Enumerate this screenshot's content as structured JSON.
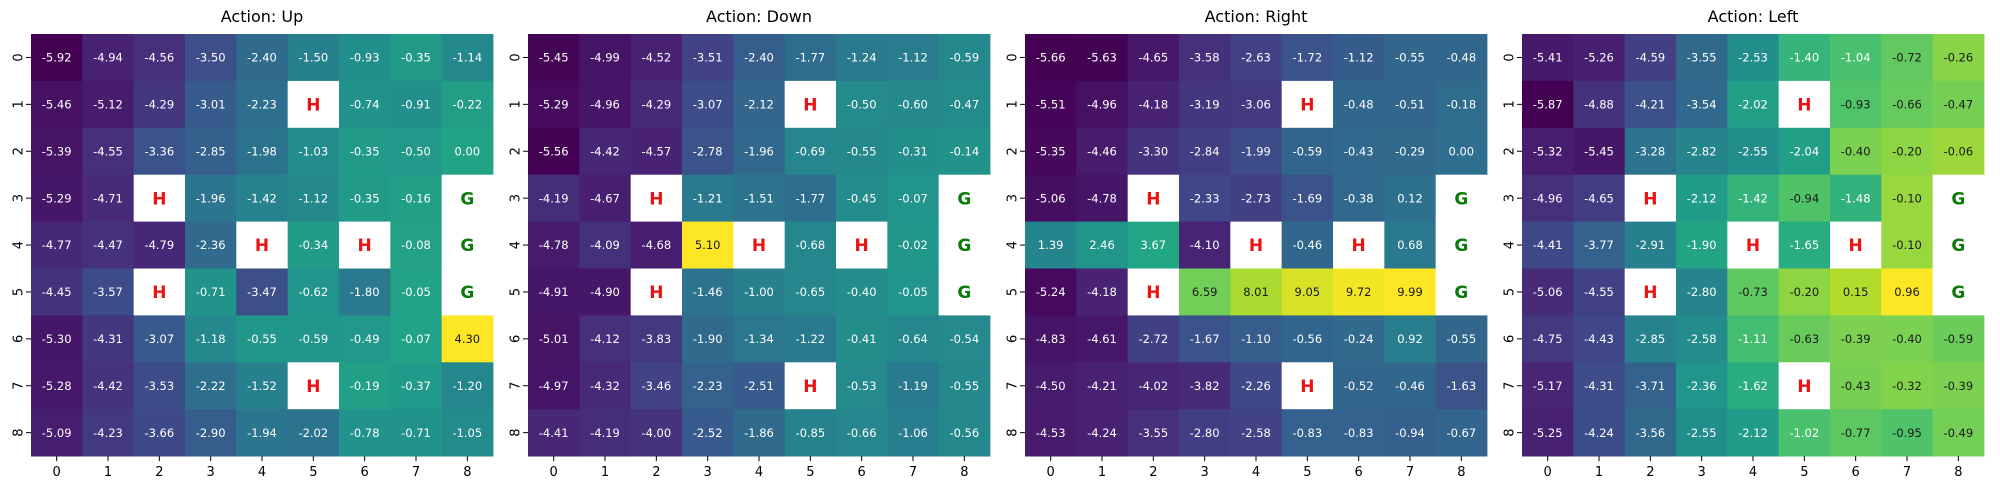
{
  "chart_data": [
    {
      "type": "heatmap",
      "title": "Action: Up",
      "x_ticks": [
        "0",
        "1",
        "2",
        "3",
        "4",
        "5",
        "6",
        "7",
        "8"
      ],
      "y_ticks": [
        "0",
        "1",
        "2",
        "3",
        "4",
        "5",
        "6",
        "7",
        "8"
      ],
      "cells": [
        [
          "-5.92",
          "-4.94",
          "-4.56",
          "-3.50",
          "-2.40",
          "-1.50",
          "-0.93",
          "-0.35",
          "-1.14"
        ],
        [
          "-5.46",
          "-5.12",
          "-4.29",
          "-3.01",
          "-2.23",
          "H",
          "-0.74",
          "-0.91",
          "-0.22"
        ],
        [
          "-5.39",
          "-4.55",
          "-3.36",
          "-2.85",
          "-1.98",
          "-1.03",
          "-0.35",
          "-0.50",
          "0.00"
        ],
        [
          "-5.29",
          "-4.71",
          "H",
          "-1.96",
          "-1.42",
          "-1.12",
          "-0.35",
          "-0.16",
          "G"
        ],
        [
          "-4.77",
          "-4.47",
          "-4.79",
          "-2.36",
          "H",
          "-0.34",
          "H",
          "-0.08",
          "G"
        ],
        [
          "-4.45",
          "-3.57",
          "H",
          "-0.71",
          "-3.47",
          "-0.62",
          "-1.80",
          "-0.05",
          "G"
        ],
        [
          "-5.30",
          "-4.31",
          "-3.07",
          "-1.18",
          "-0.55",
          "-0.59",
          "-0.49",
          "-0.07",
          "4.30"
        ],
        [
          "-5.28",
          "-4.42",
          "-3.53",
          "-2.22",
          "-1.52",
          "H",
          "-0.19",
          "-0.37",
          "-1.20"
        ],
        [
          "-5.09",
          "-4.23",
          "-3.66",
          "-2.90",
          "-1.94",
          "-2.02",
          "-0.78",
          "-0.71",
          "-1.05"
        ]
      ]
    },
    {
      "type": "heatmap",
      "title": "Action: Down",
      "x_ticks": [
        "0",
        "1",
        "2",
        "3",
        "4",
        "5",
        "6",
        "7",
        "8"
      ],
      "y_ticks": [
        "0",
        "1",
        "2",
        "3",
        "4",
        "5",
        "6",
        "7",
        "8"
      ],
      "cells": [
        [
          "-5.45",
          "-4.99",
          "-4.52",
          "-3.51",
          "-2.40",
          "-1.77",
          "-1.24",
          "-1.12",
          "-0.59"
        ],
        [
          "-5.29",
          "-4.96",
          "-4.29",
          "-3.07",
          "-2.12",
          "H",
          "-0.50",
          "-0.60",
          "-0.47"
        ],
        [
          "-5.56",
          "-4.42",
          "-4.57",
          "-2.78",
          "-1.96",
          "-0.69",
          "-0.55",
          "-0.31",
          "-0.14"
        ],
        [
          "-4.19",
          "-4.67",
          "H",
          "-1.21",
          "-1.51",
          "-1.77",
          "-0.45",
          "-0.07",
          "G"
        ],
        [
          "-4.78",
          "-4.09",
          "-4.68",
          "5.10",
          "H",
          "-0.68",
          "H",
          "-0.02",
          "G"
        ],
        [
          "-4.91",
          "-4.90",
          "H",
          "-1.46",
          "-1.00",
          "-0.65",
          "-0.40",
          "-0.05",
          "G"
        ],
        [
          "-5.01",
          "-4.12",
          "-3.83",
          "-1.90",
          "-1.34",
          "-1.22",
          "-0.41",
          "-0.64",
          "-0.54"
        ],
        [
          "-4.97",
          "-4.32",
          "-3.46",
          "-2.23",
          "-2.51",
          "H",
          "-0.53",
          "-1.19",
          "-0.55"
        ],
        [
          "-4.41",
          "-4.19",
          "-4.00",
          "-2.52",
          "-1.86",
          "-0.85",
          "-0.66",
          "-1.06",
          "-0.56"
        ]
      ]
    },
    {
      "type": "heatmap",
      "title": "Action: Right",
      "x_ticks": [
        "0",
        "1",
        "2",
        "3",
        "4",
        "5",
        "6",
        "7",
        "8"
      ],
      "y_ticks": [
        "0",
        "1",
        "2",
        "3",
        "4",
        "5",
        "6",
        "7",
        "8"
      ],
      "cells": [
        [
          "-5.66",
          "-5.63",
          "-4.65",
          "-3.58",
          "-2.63",
          "-1.72",
          "-1.12",
          "-0.55",
          "-0.48"
        ],
        [
          "-5.51",
          "-4.96",
          "-4.18",
          "-3.19",
          "-3.06",
          "H",
          "-0.48",
          "-0.51",
          "-0.18"
        ],
        [
          "-5.35",
          "-4.46",
          "-3.30",
          "-2.84",
          "-1.99",
          "-0.59",
          "-0.43",
          "-0.29",
          "0.00"
        ],
        [
          "-5.06",
          "-4.78",
          "H",
          "-2.33",
          "-2.73",
          "-1.69",
          "-0.38",
          "0.12",
          "G"
        ],
        [
          "1.39",
          "2.46",
          "3.67",
          "-4.10",
          "H",
          "-0.46",
          "H",
          "0.68",
          "G"
        ],
        [
          "-5.24",
          "-4.18",
          "H",
          "6.59",
          "8.01",
          "9.05",
          "9.72",
          "9.99",
          "G"
        ],
        [
          "-4.83",
          "-4.61",
          "-2.72",
          "-1.67",
          "-1.10",
          "-0.56",
          "-0.24",
          "0.92",
          "-0.55"
        ],
        [
          "-4.50",
          "-4.21",
          "-4.02",
          "-3.82",
          "-2.26",
          "H",
          "-0.52",
          "-0.46",
          "-1.63"
        ],
        [
          "-4.53",
          "-4.24",
          "-3.55",
          "-2.80",
          "-2.58",
          "-0.83",
          "-0.83",
          "-0.94",
          "-0.67"
        ]
      ]
    },
    {
      "type": "heatmap",
      "title": "Action: Left",
      "x_ticks": [
        "0",
        "1",
        "2",
        "3",
        "4",
        "5",
        "6",
        "7",
        "8"
      ],
      "y_ticks": [
        "0",
        "1",
        "2",
        "3",
        "4",
        "5",
        "6",
        "7",
        "8"
      ],
      "cells": [
        [
          "-5.41",
          "-5.26",
          "-4.59",
          "-3.55",
          "-2.53",
          "-1.40",
          "-1.04",
          "-0.72",
          "-0.26"
        ],
        [
          "-5.87",
          "-4.88",
          "-4.21",
          "-3.54",
          "-2.02",
          "H",
          "-0.93",
          "-0.66",
          "-0.47"
        ],
        [
          "-5.32",
          "-5.45",
          "-3.28",
          "-2.82",
          "-2.55",
          "-2.04",
          "-0.40",
          "-0.20",
          "-0.06"
        ],
        [
          "-4.96",
          "-4.65",
          "H",
          "-2.12",
          "-1.42",
          "-0.94",
          "-1.48",
          "-0.10",
          "G"
        ],
        [
          "-4.41",
          "-3.77",
          "-2.91",
          "-1.90",
          "H",
          "-1.65",
          "H",
          "-0.10",
          "G"
        ],
        [
          "-5.06",
          "-4.55",
          "H",
          "-2.80",
          "-0.73",
          "-0.20",
          "0.15",
          "0.96",
          "G"
        ],
        [
          "-4.75",
          "-4.43",
          "-2.85",
          "-2.58",
          "-1.11",
          "-0.63",
          "-0.39",
          "-0.40",
          "-0.59"
        ],
        [
          "-5.17",
          "-4.31",
          "-3.71",
          "-2.36",
          "-1.62",
          "H",
          "-0.43",
          "-0.32",
          "-0.39"
        ],
        [
          "-5.25",
          "-4.24",
          "-3.56",
          "-2.55",
          "-2.12",
          "-1.02",
          "-0.77",
          "-0.95",
          "-0.49"
        ]
      ]
    }
  ],
  "colors": {
    "colormap": "viridis",
    "hole_text": "#ee1111",
    "goal_text": "#0a7a0a",
    "special_cell_bg": "#ffffff"
  }
}
